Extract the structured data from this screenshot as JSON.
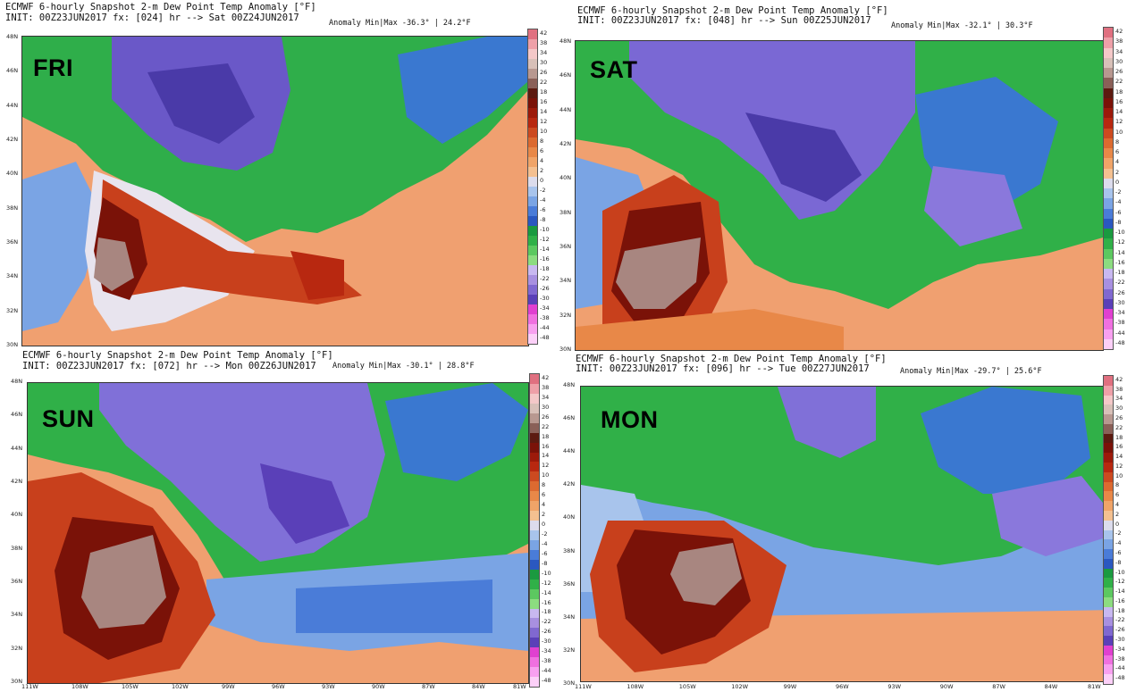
{
  "panels": [
    {
      "day": "FRI",
      "title": "ECMWF 6-hourly Snapshot 2-m Dew Point Temp Anomaly [°F]",
      "init": "INIT: 00Z23JUN2017 fx: [024] hr --> Sat 00Z24JUN2017",
      "minmax": "Anomaly Min|Max -36.3° | 24.2°F"
    },
    {
      "day": "SAT",
      "title": "ECMWF 6-hourly Snapshot 2-m Dew Point Temp Anomaly [°F]",
      "init": "INIT: 00Z23JUN2017 fx: [048] hr --> Sun 00Z25JUN2017",
      "minmax": "Anomaly Min|Max -32.1° | 30.3°F"
    },
    {
      "day": "SUN",
      "title": "ECMWF 6-hourly Snapshot 2-m Dew Point Temp Anomaly [°F]",
      "init": "INIT: 00Z23JUN2017 fx: [072] hr --> Mon 00Z26JUN2017",
      "minmax": "Anomaly Min|Max -30.1° | 28.8°F"
    },
    {
      "day": "MON",
      "title": "ECMWF 6-hourly Snapshot 2-m Dew Point Temp Anomaly [°F]",
      "init": "INIT: 00Z23JUN2017 fx: [096] hr --> Tue 00Z27JUN2017",
      "minmax": "Anomaly Min|Max -29.7° | 25.6°F"
    }
  ],
  "lat_labels": [
    "48N",
    "46N",
    "44N",
    "42N",
    "40N",
    "38N",
    "36N",
    "34N",
    "32N",
    "30N"
  ],
  "lon_labels": [
    "111W",
    "108W",
    "105W",
    "102W",
    "99W",
    "96W",
    "93W",
    "90W",
    "87W",
    "84W",
    "81W"
  ],
  "colorbar": {
    "labels": [
      "42",
      "38",
      "34",
      "30",
      "26",
      "22",
      "18",
      "16",
      "14",
      "12",
      "10",
      "8",
      "6",
      "4",
      "2",
      "0",
      "-2",
      "-4",
      "-6",
      "-8",
      "-10",
      "-12",
      "-14",
      "-16",
      "-18",
      "-22",
      "-26",
      "-30",
      "-34",
      "-38",
      "-44",
      "-48"
    ],
    "colors": [
      "#e07080",
      "#eea0a8",
      "#f4c8c8",
      "#d8c0b8",
      "#b89890",
      "#8a6058",
      "#5c1a10",
      "#7a1208",
      "#9c1a0a",
      "#b82810",
      "#cc4a20",
      "#dc6a30",
      "#e88848",
      "#f0a468",
      "#f4c090",
      "#dcdcec",
      "#a8c4ec",
      "#7aa4e4",
      "#4a7cd8",
      "#2a58c0",
      "#1a9a40",
      "#30b048",
      "#5cc860",
      "#8cdc80",
      "#c8b8f0",
      "#a890e0",
      "#8068d0",
      "#5a40b8",
      "#e040d0",
      "#f070e0",
      "#f8a0f0",
      "#fcd0f8"
    ]
  }
}
